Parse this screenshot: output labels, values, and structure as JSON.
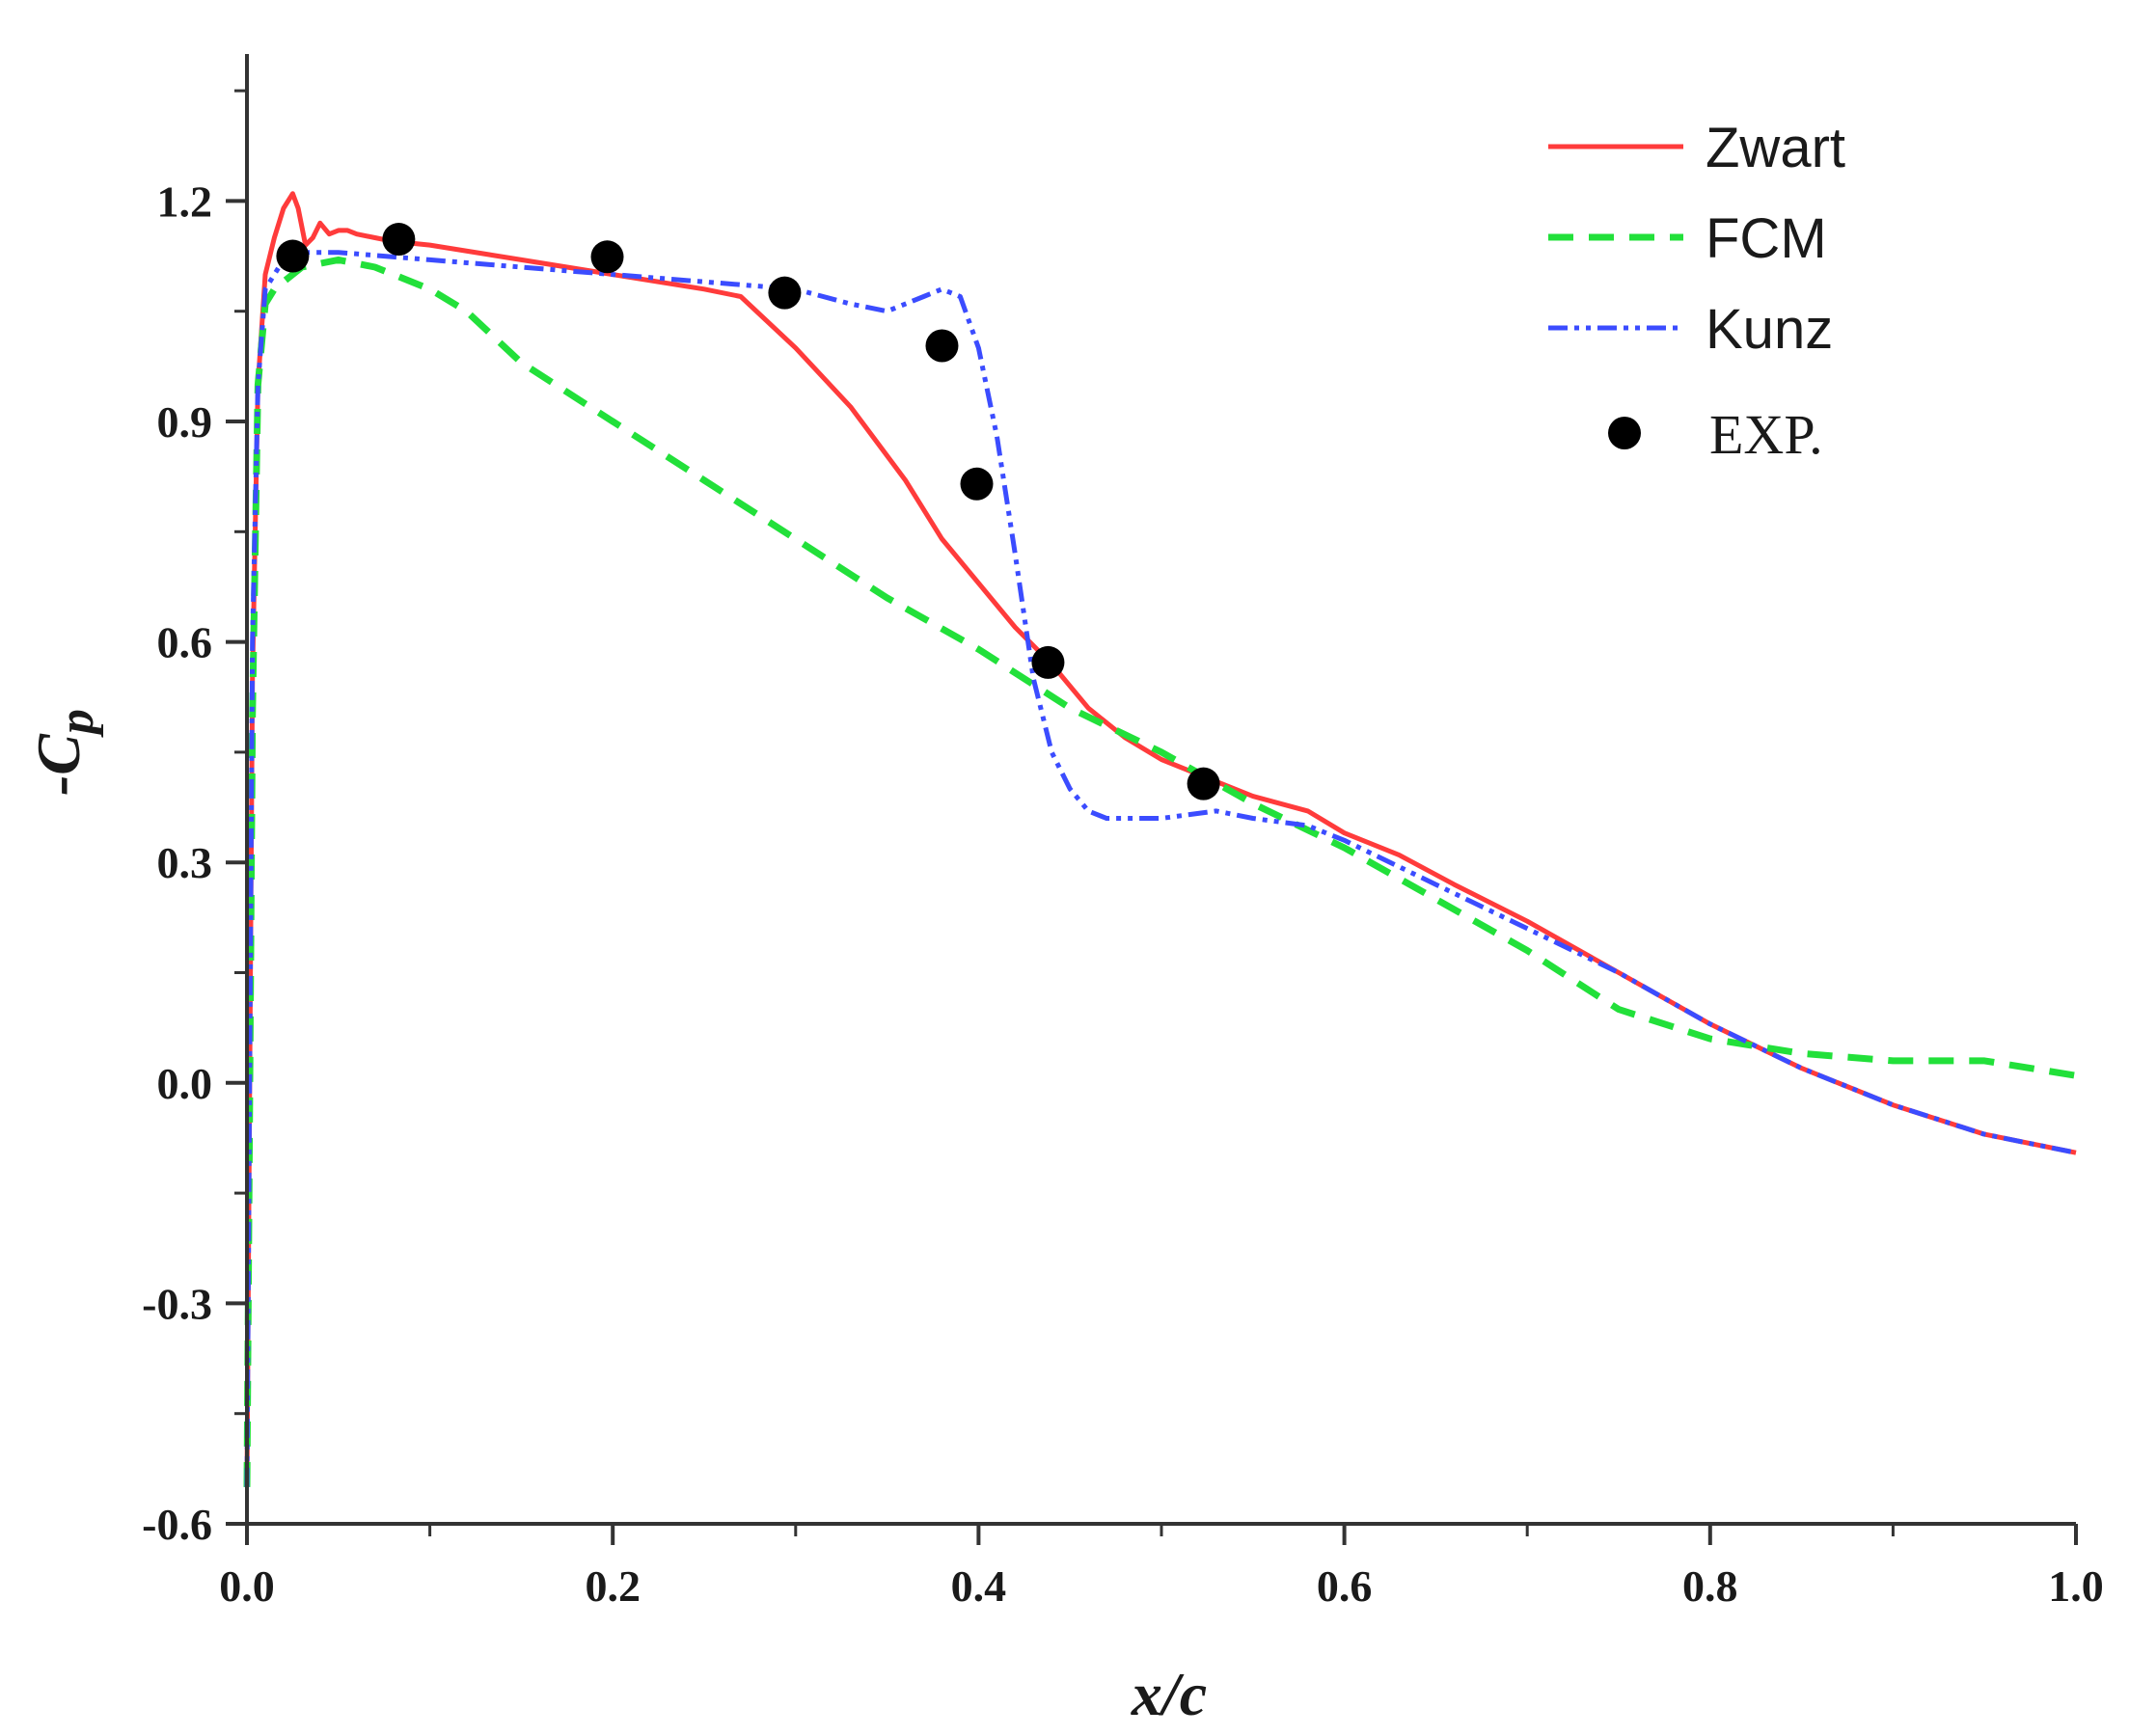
{
  "chart_data": {
    "type": "line",
    "title": "",
    "xlabel": "x/c",
    "ylabel": "-Cp",
    "ylabel_main": "-C",
    "ylabel_sub": "p",
    "xlim": [
      0.0,
      1.0
    ],
    "ylim": [
      -0.6,
      1.4
    ],
    "x_ticks": [
      0.0,
      0.2,
      0.4,
      0.6,
      0.8,
      1.0
    ],
    "x_tick_labels": [
      "0.0",
      "0.2",
      "0.4",
      "0.6",
      "0.8",
      "1.0"
    ],
    "y_ticks": [
      -0.6,
      -0.3,
      0.0,
      0.3,
      0.6,
      0.9,
      1.2
    ],
    "y_tick_labels": [
      "-0.6",
      "-0.3",
      "0.0",
      "0.3",
      "0.6",
      "0.9",
      "1.2"
    ],
    "x_minor_step": 0.1,
    "y_minor_step": 0.15,
    "grid": false,
    "legend_position": "top-right",
    "series": [
      {
        "name": "Zwart",
        "style": "solid",
        "color": "#ff3b3b",
        "x": [
          0.0,
          0.003,
          0.006,
          0.01,
          0.015,
          0.02,
          0.025,
          0.028,
          0.032,
          0.036,
          0.04,
          0.045,
          0.05,
          0.055,
          0.06,
          0.07,
          0.08,
          0.1,
          0.15,
          0.2,
          0.25,
          0.27,
          0.3,
          0.33,
          0.36,
          0.38,
          0.4,
          0.42,
          0.44,
          0.46,
          0.48,
          0.5,
          0.52,
          0.55,
          0.58,
          0.6,
          0.63,
          0.66,
          0.7,
          0.75,
          0.8,
          0.85,
          0.9,
          0.95,
          1.0
        ],
        "y": [
          -0.55,
          0.55,
          0.95,
          1.1,
          1.15,
          1.19,
          1.21,
          1.19,
          1.14,
          1.15,
          1.17,
          1.155,
          1.16,
          1.16,
          1.155,
          1.15,
          1.145,
          1.14,
          1.12,
          1.1,
          1.08,
          1.07,
          1.0,
          0.92,
          0.82,
          0.74,
          0.68,
          0.62,
          0.57,
          0.51,
          0.47,
          0.44,
          0.42,
          0.39,
          0.37,
          0.34,
          0.31,
          0.27,
          0.22,
          0.15,
          0.08,
          0.02,
          -0.03,
          -0.07,
          -0.095
        ]
      },
      {
        "name": "FCM",
        "style": "dashed",
        "color": "#22e03a",
        "x": [
          0.0,
          0.003,
          0.006,
          0.01,
          0.015,
          0.02,
          0.03,
          0.05,
          0.07,
          0.1,
          0.12,
          0.15,
          0.2,
          0.25,
          0.3,
          0.35,
          0.4,
          0.45,
          0.5,
          0.55,
          0.6,
          0.65,
          0.7,
          0.75,
          0.8,
          0.85,
          0.9,
          0.95,
          1.0
        ],
        "y": [
          -0.55,
          0.5,
          0.95,
          1.06,
          1.08,
          1.09,
          1.11,
          1.12,
          1.11,
          1.08,
          1.05,
          0.98,
          0.9,
          0.82,
          0.74,
          0.66,
          0.59,
          0.51,
          0.45,
          0.38,
          0.32,
          0.25,
          0.18,
          0.1,
          0.06,
          0.04,
          0.03,
          0.03,
          0.01
        ]
      },
      {
        "name": "Kunz",
        "style": "dashdotdot",
        "color": "#3b4cff",
        "x": [
          0.0,
          0.003,
          0.006,
          0.01,
          0.015,
          0.02,
          0.03,
          0.05,
          0.1,
          0.15,
          0.2,
          0.25,
          0.3,
          0.33,
          0.35,
          0.37,
          0.38,
          0.39,
          0.4,
          0.41,
          0.42,
          0.43,
          0.44,
          0.45,
          0.46,
          0.47,
          0.5,
          0.53,
          0.55,
          0.58,
          0.6,
          0.65,
          0.7,
          0.75,
          0.8,
          0.85,
          0.9,
          0.95,
          1.0
        ],
        "y": [
          -0.55,
          0.6,
          0.95,
          1.08,
          1.1,
          1.12,
          1.13,
          1.13,
          1.12,
          1.11,
          1.1,
          1.09,
          1.08,
          1.06,
          1.05,
          1.07,
          1.08,
          1.07,
          1.0,
          0.88,
          0.72,
          0.55,
          0.45,
          0.4,
          0.37,
          0.36,
          0.36,
          0.37,
          0.36,
          0.35,
          0.33,
          0.27,
          0.21,
          0.15,
          0.08,
          0.02,
          -0.03,
          -0.07,
          -0.095
        ]
      },
      {
        "name": "EXP.",
        "style": "marker",
        "color": "#000000",
        "x": [
          0.025,
          0.083,
          0.197,
          0.294,
          0.38,
          0.399,
          0.438,
          0.523
        ],
        "y": [
          1.125,
          1.148,
          1.124,
          1.075,
          1.003,
          0.815,
          0.572,
          0.407
        ]
      }
    ]
  }
}
